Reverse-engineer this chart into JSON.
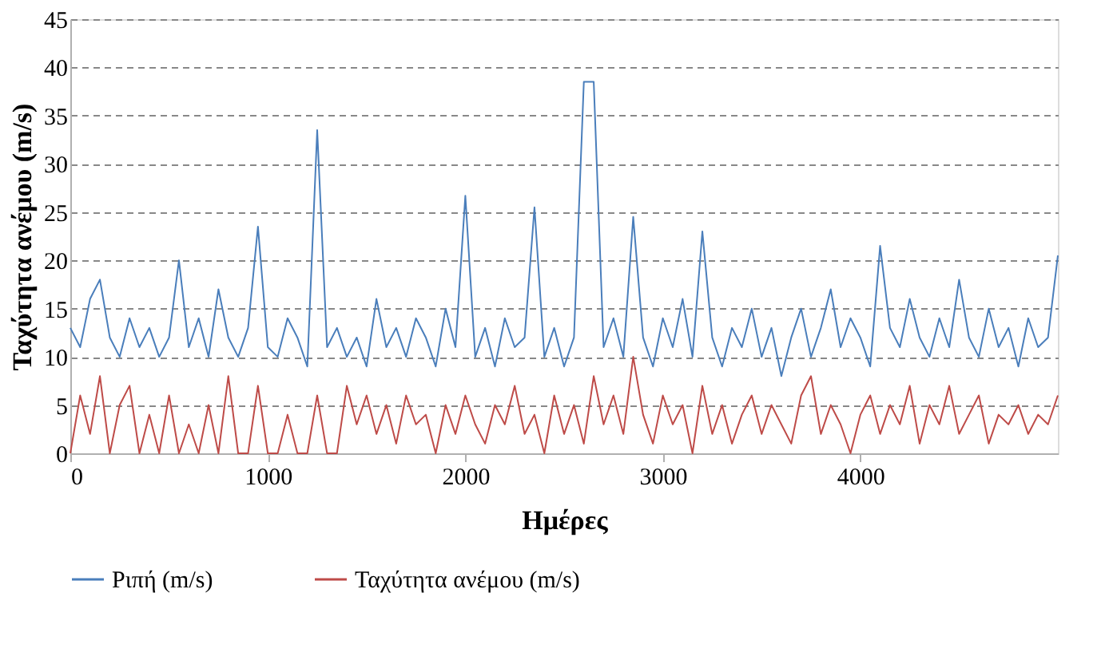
{
  "chart_data": {
    "type": "line",
    "xlabel": "Ημέρες",
    "ylabel": "Ταχύτητα ανέμου (m/s)",
    "x": [
      0,
      50,
      100,
      150,
      200,
      250,
      300,
      350,
      400,
      450,
      500,
      550,
      600,
      650,
      700,
      750,
      800,
      850,
      900,
      950,
      1000,
      1050,
      1100,
      1150,
      1200,
      1250,
      1300,
      1350,
      1400,
      1450,
      1500,
      1550,
      1600,
      1650,
      1700,
      1750,
      1800,
      1850,
      1900,
      1950,
      2000,
      2050,
      2100,
      2150,
      2200,
      2250,
      2300,
      2350,
      2400,
      2450,
      2500,
      2550,
      2600,
      2650,
      2700,
      2750,
      2800,
      2850,
      2900,
      2950,
      3000,
      3050,
      3100,
      3150,
      3200,
      3250,
      3300,
      3350,
      3400,
      3450,
      3500,
      3550,
      3600,
      3650,
      3700,
      3750,
      3800,
      3850,
      3900,
      3950,
      4000,
      4050,
      4100,
      4150,
      4200,
      4250,
      4300,
      4350,
      4400,
      4450,
      4500,
      4550,
      4600,
      4650,
      4700,
      4750,
      4800,
      4850,
      4900,
      4950,
      5000
    ],
    "series": [
      {
        "name": "Ριπή (m/s)",
        "color": "#4a7ebb",
        "values": [
          13,
          11,
          16,
          18,
          12,
          10,
          14,
          11,
          13,
          10,
          12,
          20,
          11,
          14,
          10,
          17,
          12,
          10,
          13,
          23.5,
          11,
          10,
          14,
          12,
          9,
          33.5,
          11,
          13,
          10,
          12,
          9,
          16,
          11,
          13,
          10,
          14,
          12,
          9,
          15,
          11,
          26.7,
          10,
          13,
          9,
          14,
          11,
          12,
          25.5,
          10,
          13,
          9,
          12,
          38.5,
          38.5,
          11,
          14,
          10,
          24.5,
          12,
          9,
          14,
          11,
          16,
          10,
          23,
          12,
          9,
          13,
          11,
          15,
          10,
          13,
          8,
          12,
          15,
          10,
          13,
          17,
          11,
          14,
          12,
          9,
          21.5,
          13,
          11,
          16,
          12,
          10,
          14,
          11,
          18,
          12,
          10,
          15,
          11,
          13,
          9,
          14,
          11,
          12,
          20.5
        ]
      },
      {
        "name": "Ταχύτητα ανέμου (m/s)",
        "color": "#be4b48",
        "values": [
          0,
          6,
          2,
          8,
          0,
          5,
          7,
          0,
          4,
          0,
          6,
          0,
          3,
          0,
          5,
          0,
          8,
          0,
          0,
          7,
          0,
          0,
          4,
          0,
          0,
          6,
          0,
          0,
          7,
          3,
          6,
          2,
          5,
          1,
          6,
          3,
          4,
          0,
          5,
          2,
          6,
          3,
          1,
          5,
          3,
          7,
          2,
          4,
          0,
          6,
          2,
          5,
          1,
          8,
          3,
          6,
          2,
          10,
          4,
          1,
          6,
          3,
          5,
          0,
          7,
          2,
          5,
          1,
          4,
          6,
          2,
          5,
          3,
          1,
          6,
          8,
          2,
          5,
          3,
          0,
          4,
          6,
          2,
          5,
          3,
          7,
          1,
          5,
          3,
          7,
          2,
          4,
          6,
          1,
          4,
          3,
          5,
          2,
          4,
          3,
          6
        ]
      }
    ],
    "xlim": [
      0,
      5000
    ],
    "xticks": [
      0,
      1000,
      2000,
      3000,
      4000
    ],
    "ylim": [
      0,
      45
    ],
    "yticks": [
      0,
      5,
      10,
      15,
      20,
      25,
      30,
      35,
      40,
      45
    ],
    "grid": "y",
    "legend": "bottom"
  }
}
